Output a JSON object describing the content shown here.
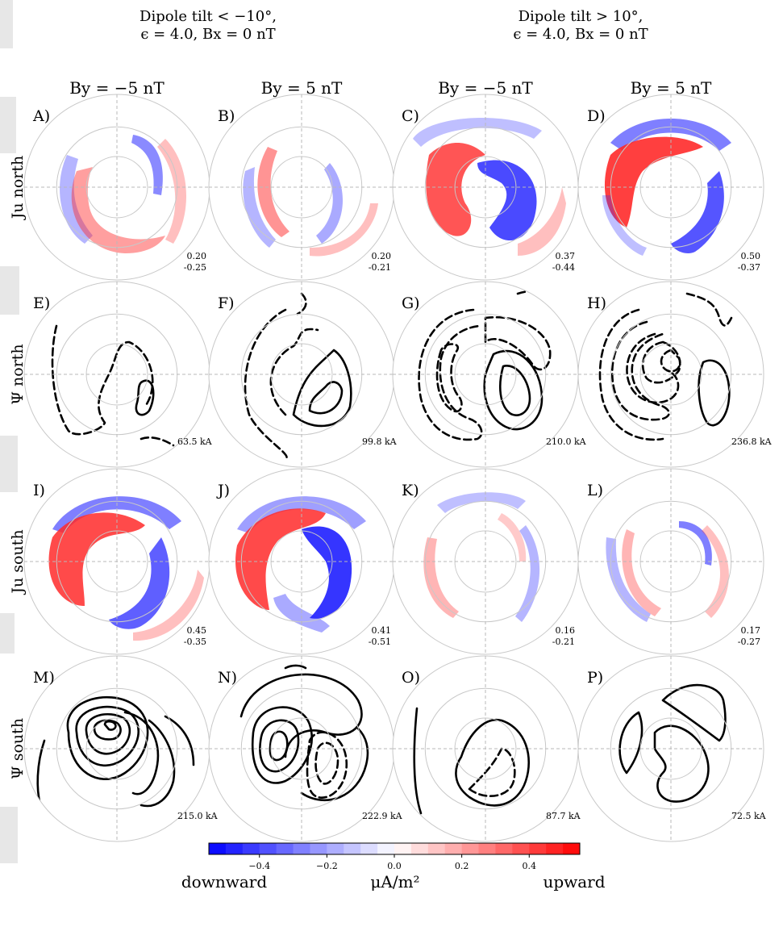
{
  "group_headers": [
    {
      "line1": "Dipole tilt < −10°,",
      "line2": "ϵ = 4.0, Bx = 0 nT"
    },
    {
      "line1": "Dipole tilt > 10°,",
      "line2": "ϵ = 4.0, Bx = 0 nT"
    }
  ],
  "column_headers": [
    "By = −5 nT",
    "By = 5 nT",
    "By = −5 nT",
    "By = 5 nT"
  ],
  "row_headers": [
    "Ju north",
    "Ψ north",
    "Ju south",
    "Ψ south"
  ],
  "panels": [
    {
      "label": "A)",
      "type": "current",
      "max": "0.20",
      "min": "-0.25"
    },
    {
      "label": "B)",
      "type": "current",
      "max": "0.20",
      "min": "-0.21"
    },
    {
      "label": "C)",
      "type": "current",
      "max": "0.37",
      "min": "-0.44"
    },
    {
      "label": "D)",
      "type": "current",
      "max": "0.50",
      "min": "-0.37"
    },
    {
      "label": "E)",
      "type": "potential",
      "total": "63.5 kA"
    },
    {
      "label": "F)",
      "type": "potential",
      "total": "99.8 kA"
    },
    {
      "label": "G)",
      "type": "potential",
      "total": "210.0 kA"
    },
    {
      "label": "H)",
      "type": "potential",
      "total": "236.8 kA"
    },
    {
      "label": "I)",
      "type": "current",
      "max": "0.45",
      "min": "-0.35"
    },
    {
      "label": "J)",
      "type": "current",
      "max": "0.41",
      "min": "-0.51"
    },
    {
      "label": "K)",
      "type": "current",
      "max": "0.16",
      "min": "-0.21"
    },
    {
      "label": "L)",
      "type": "current",
      "max": "0.17",
      "min": "-0.27"
    },
    {
      "label": "M)",
      "type": "potential",
      "total": "215.0 kA"
    },
    {
      "label": "N)",
      "type": "potential",
      "total": "222.9 kA"
    },
    {
      "label": "O)",
      "type": "potential",
      "total": "87.7 kA"
    },
    {
      "label": "P)",
      "type": "potential",
      "total": "72.5 kA"
    }
  ],
  "colorbar": {
    "ticks": [
      "−0.4",
      "−0.2",
      "0.0",
      "0.2",
      "0.4"
    ],
    "tick_values": [
      -0.4,
      -0.2,
      0.0,
      0.2,
      0.4
    ],
    "range": [
      -0.55,
      0.55
    ],
    "left_label": "downward",
    "unit": "μA/m²",
    "right_label": "upward",
    "colors": {
      "negative": "#0000ff",
      "zero": "#ffffff",
      "positive": "#ff0000"
    }
  }
}
